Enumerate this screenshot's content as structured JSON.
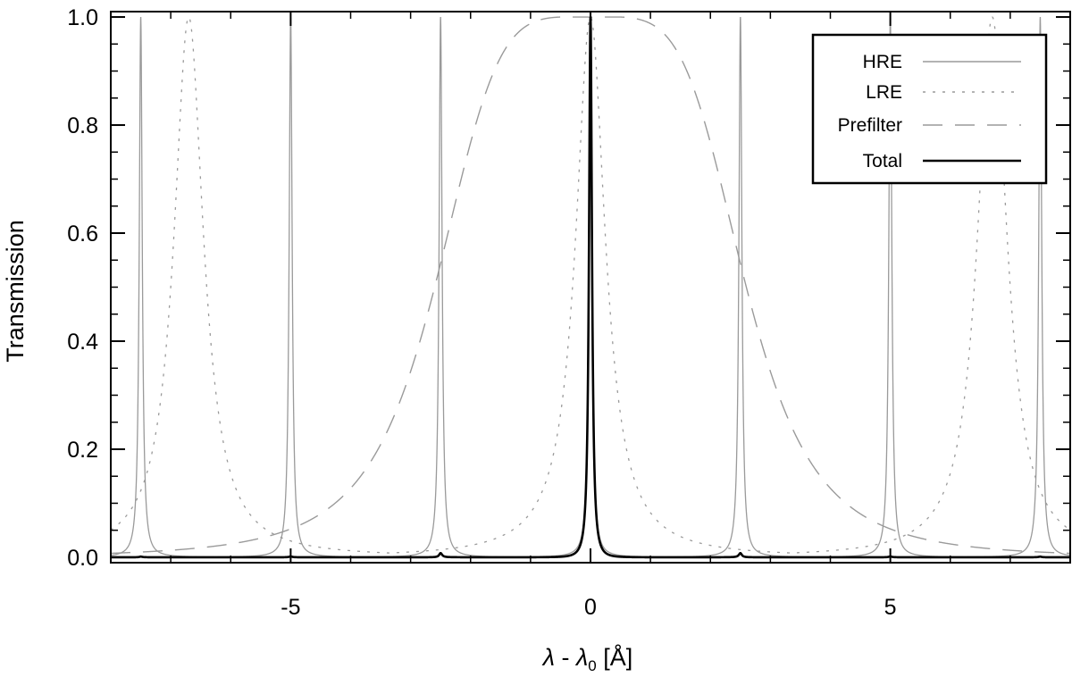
{
  "chart_data": {
    "type": "line",
    "xlabel_parts": {
      "a": "λ",
      "sep": " - ",
      "b": "λ",
      "sub": "0",
      "unit": " [Å]"
    },
    "ylabel": "Transmission",
    "xlim": [
      -8.0,
      8.0
    ],
    "ylim": [
      -0.01,
      1.01
    ],
    "xticks": [
      -5,
      0,
      5
    ],
    "xtick_labels": [
      "-5",
      "0",
      "5"
    ],
    "yticks": [
      0.0,
      0.2,
      0.4,
      0.6,
      0.8,
      1.0
    ],
    "ytick_labels": [
      "0.0",
      "0.2",
      "0.4",
      "0.6",
      "0.8",
      "1.0"
    ],
    "grid": false,
    "legend_position": "top-right",
    "series": [
      {
        "name": "HRE",
        "color": "#9a9a9a",
        "style": "solid",
        "fsr_angstrom": 2.5,
        "peak_centers": [
          -7.5,
          -5.0,
          -2.5,
          0.0,
          2.5,
          5.0,
          7.5
        ],
        "peak_value": 1.0,
        "fwhm_angstrom": 0.06
      },
      {
        "name": "LRE",
        "color": "#9a9a9a",
        "style": "dotted",
        "fsr_angstrom": 6.7,
        "peak_centers": [
          -6.7,
          0.0,
          6.7
        ],
        "peak_value": 1.0,
        "fwhm_angstrom": 0.6
      },
      {
        "name": "Prefilter",
        "color": "#9a9a9a",
        "style": "dashed",
        "center": 0.0,
        "peak_value": 1.0,
        "fwhm_angstrom": 4.6,
        "flat_top_width_angstrom": 0.9
      },
      {
        "name": "Total",
        "color": "#000000",
        "style": "solid",
        "center": 0.0,
        "peak_value": 1.0,
        "fwhm_angstrom": 0.06
      }
    ]
  }
}
